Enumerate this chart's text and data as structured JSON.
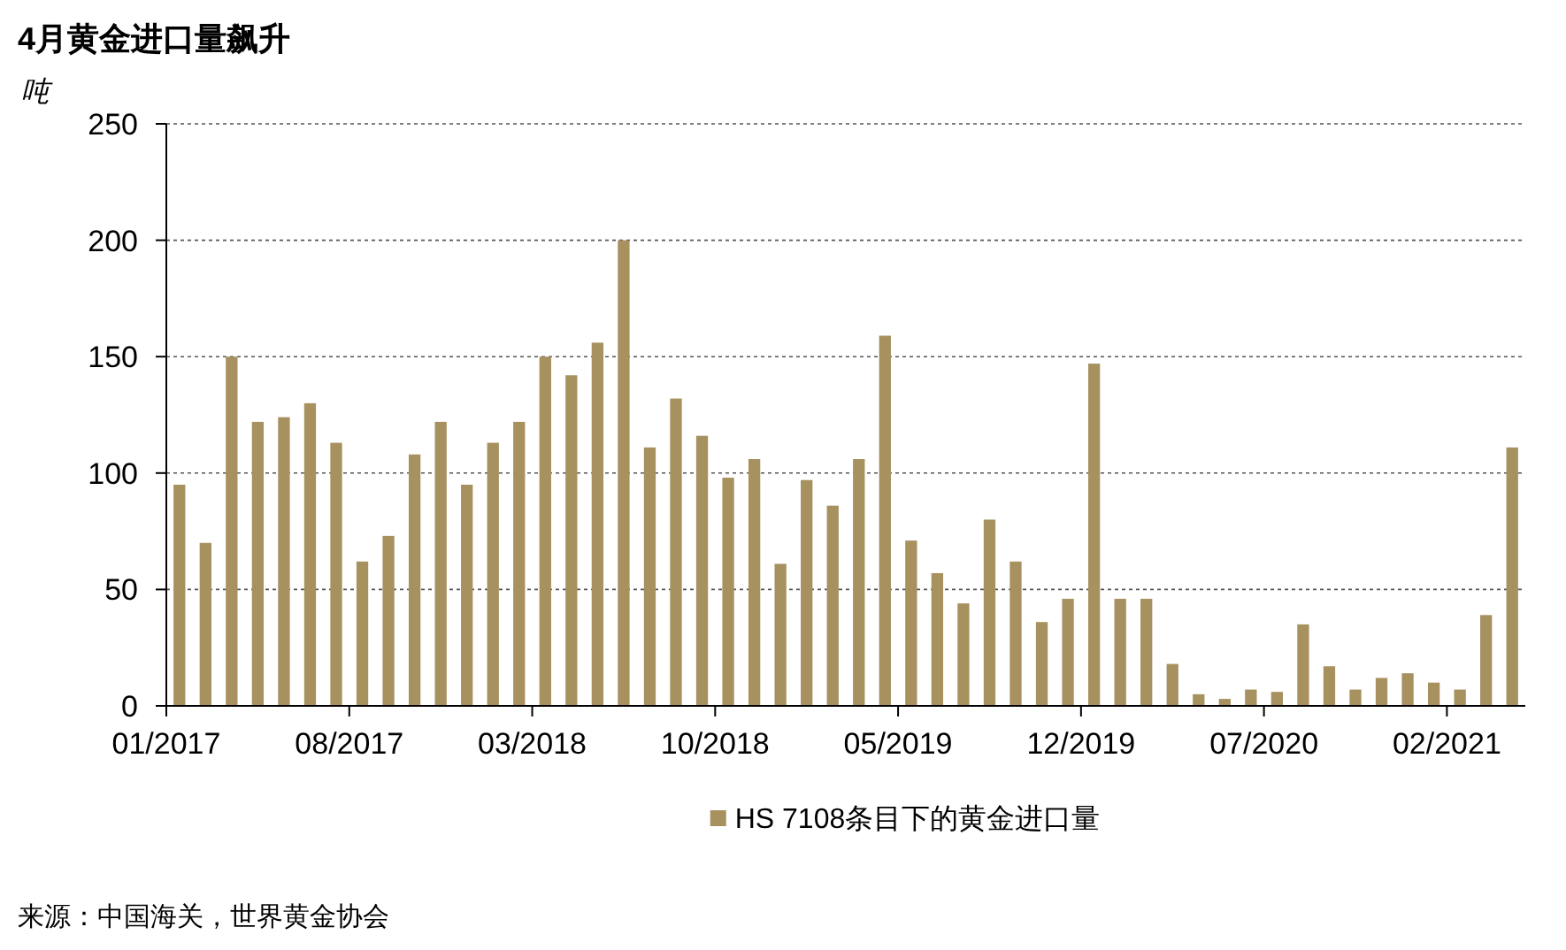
{
  "chart_data": {
    "type": "bar",
    "title": "4月黄金进口量飙升",
    "ylabel": "吨",
    "categories": [
      "01/2017",
      null,
      null,
      null,
      null,
      null,
      null,
      "08/2017",
      null,
      null,
      null,
      null,
      null,
      null,
      "03/2018",
      null,
      null,
      null,
      null,
      null,
      null,
      "10/2018",
      null,
      null,
      null,
      null,
      null,
      null,
      "05/2019",
      null,
      null,
      null,
      null,
      null,
      null,
      "12/2019",
      null,
      null,
      null,
      null,
      null,
      null,
      "07/2020",
      null,
      null,
      null,
      null,
      null,
      null,
      "02/2021",
      null,
      null
    ],
    "series": [
      {
        "name": "HS 7108条目下的黄金进口量",
        "color": "#a6915f",
        "values": [
          95,
          70,
          150,
          122,
          124,
          130,
          113,
          62,
          73,
          108,
          122,
          95,
          113,
          122,
          150,
          142,
          156,
          200,
          111,
          132,
          116,
          98,
          106,
          61,
          97,
          86,
          106,
          159,
          71,
          57,
          44,
          80,
          62,
          36,
          46,
          147,
          46,
          46,
          18,
          5,
          3,
          7,
          6,
          35,
          17,
          7,
          12,
          14,
          10,
          7,
          39,
          111
        ]
      }
    ],
    "ylim": [
      0,
      250
    ],
    "yticks": [
      0,
      50,
      100,
      150,
      200,
      250
    ],
    "grid": "y",
    "legend": "bottom",
    "annotations": [
      "来源：中国海关，世界黄金协会"
    ]
  }
}
